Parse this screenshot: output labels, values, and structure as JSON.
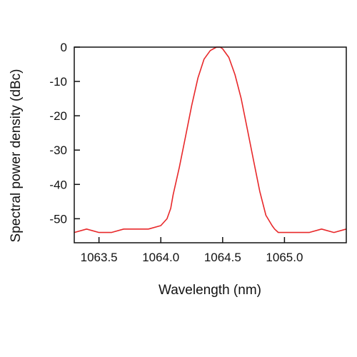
{
  "chart_data": {
    "type": "line",
    "title": "",
    "xlabel": "Wavelength (nm)",
    "ylabel": "Spectral power density (dBc)",
    "xlim": [
      1063.3,
      1065.5
    ],
    "ylim": [
      -57,
      0
    ],
    "x_ticks": [
      1063.5,
      1064.0,
      1064.5,
      1065.0
    ],
    "x_tick_labels": [
      "1063.5",
      "1064.0",
      "1064.5",
      "1065.0"
    ],
    "y_ticks": [
      0,
      -10,
      -20,
      -30,
      -40,
      -50
    ],
    "y_tick_labels": [
      "0",
      "-10",
      "-20",
      "-30",
      "-40",
      "-50"
    ],
    "grid": false,
    "legend": "none",
    "series": [
      {
        "color": "#e8282a",
        "x": [
          1063.3,
          1063.4,
          1063.5,
          1063.6,
          1063.7,
          1063.8,
          1063.9,
          1064.0,
          1064.05,
          1064.08,
          1064.1,
          1064.15,
          1064.2,
          1064.25,
          1064.3,
          1064.35,
          1064.4,
          1064.45,
          1064.48,
          1064.5,
          1064.55,
          1064.6,
          1064.65,
          1064.7,
          1064.75,
          1064.8,
          1064.85,
          1064.9,
          1064.92,
          1064.95,
          1065.0,
          1065.1,
          1065.2,
          1065.3,
          1065.4,
          1065.5
        ],
        "y": [
          -54,
          -53,
          -54,
          -54,
          -53,
          -53,
          -53,
          -52,
          -50,
          -47,
          -43,
          -35,
          -26,
          -17,
          -9,
          -3.5,
          -1,
          0,
          0,
          -0.5,
          -3,
          -8,
          -15,
          -24,
          -33,
          -42,
          -49,
          -52,
          -53,
          -54,
          -54,
          -54,
          -54,
          -53,
          -54,
          -53
        ]
      }
    ]
  }
}
